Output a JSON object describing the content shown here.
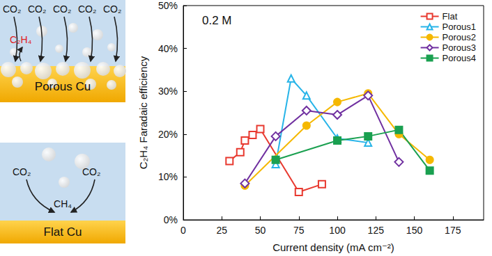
{
  "chart_data": {
    "type": "line",
    "annotation": "0.2 M",
    "x_label": "Current density (mA cm⁻²)",
    "y_label": "C₂H₄ Faradaic efficiency",
    "xlim": [
      0,
      195
    ],
    "xticks": [
      0,
      25,
      50,
      75,
      100,
      125,
      150,
      175
    ],
    "ylim": [
      0,
      50
    ],
    "yticks": [
      {
        "value": 0,
        "label": "0%"
      },
      {
        "value": 10,
        "label": "10%"
      },
      {
        "value": 20,
        "label": "20%"
      },
      {
        "value": 30,
        "label": "30%"
      },
      {
        "value": 40,
        "label": "40%"
      },
      {
        "value": 50,
        "label": "50%"
      }
    ],
    "grid": false,
    "legend": "upper right",
    "series": [
      {
        "name": "Flat",
        "color": "#e8392f",
        "marker": "square-open",
        "x": [
          30,
          37,
          40,
          45,
          50,
          75,
          90
        ],
        "values": [
          13.7,
          15.8,
          18.5,
          19.8,
          21.2,
          6.5,
          8.3
        ]
      },
      {
        "name": "Porous1",
        "color": "#27b4e8",
        "marker": "triangle-open",
        "x": [
          60,
          70,
          80,
          100,
          120
        ],
        "values": [
          13,
          33,
          29,
          19,
          18
        ]
      },
      {
        "name": "Porous2",
        "color": "#f5b800",
        "marker": "circle",
        "x": [
          40,
          80,
          100,
          120,
          140,
          160
        ],
        "values": [
          8,
          22,
          27.5,
          29.5,
          20,
          14
        ]
      },
      {
        "name": "Porous3",
        "color": "#7030a0",
        "marker": "diamond-open",
        "x": [
          40,
          60,
          80,
          100,
          120,
          140
        ],
        "values": [
          8.5,
          19.5,
          25.5,
          24.5,
          29,
          13.5
        ]
      },
      {
        "name": "Porous4",
        "color": "#1aa050",
        "marker": "square",
        "x": [
          60,
          100,
          120,
          140,
          160
        ],
        "values": [
          14,
          18.5,
          19.5,
          21,
          11.5
        ]
      }
    ]
  },
  "schematic": {
    "porous": {
      "reactants": [
        "CO₂",
        "CO₂",
        "CO₂",
        "CO₂",
        "CO₂"
      ],
      "product": "C₂H₄",
      "label": "Porous Cu"
    },
    "flat": {
      "reactants": [
        "CO₂",
        "CO₂"
      ],
      "product": "CH₄",
      "label": "Flat Cu"
    }
  }
}
